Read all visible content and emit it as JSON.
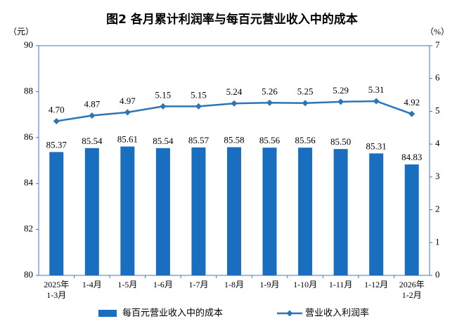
{
  "chart_data": {
    "type": "bar-line",
    "title": "图2 各月累计利润率与每百元营业收入中的成本",
    "y_unit": "（元）",
    "y2_unit": "（%）",
    "categories": [
      "2025年\n1-3月",
      "1-4月",
      "1-5月",
      "1-6月",
      "1-7月",
      "1-8月",
      "1-9月",
      "1-10月",
      "1-11月",
      "1-12月",
      "2026年\n1-2月"
    ],
    "ylim": [
      80,
      90
    ],
    "yticks": [
      80,
      82,
      84,
      86,
      88,
      90
    ],
    "y2lim": [
      0,
      7
    ],
    "y2ticks": [
      0,
      1,
      2,
      3,
      4,
      5,
      6,
      7
    ],
    "series": [
      {
        "name": "每百元营业收入中的成本",
        "type": "bar",
        "color": "#1a6ec0",
        "values": [
          85.37,
          85.54,
          85.61,
          85.54,
          85.57,
          85.58,
          85.56,
          85.56,
          85.5,
          85.31,
          84.83
        ],
        "value_labels": [
          "85.37",
          "85.54",
          "85.61",
          "85.54",
          "85.57",
          "85.58",
          "85.56",
          "85.56",
          "85.50",
          "85.31",
          "84.83"
        ]
      },
      {
        "name": "营业收入利润率",
        "type": "line",
        "axis": "y2",
        "color": "#2e75b6",
        "values": [
          4.7,
          4.87,
          4.97,
          5.15,
          5.15,
          5.24,
          5.26,
          5.25,
          5.29,
          5.31,
          4.92
        ],
        "value_labels": [
          "4.70",
          "4.87",
          "4.97",
          "5.15",
          "5.15",
          "5.24",
          "5.26",
          "5.25",
          "5.29",
          "5.31",
          "4.92"
        ]
      }
    ]
  }
}
